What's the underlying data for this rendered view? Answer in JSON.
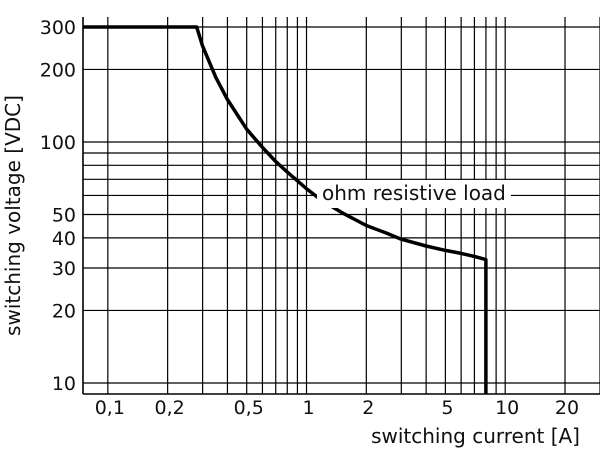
{
  "chart_data": {
    "type": "line",
    "xlabel": "switching current [A]",
    "ylabel": "switching voltage [VDC]",
    "x_scale": "log",
    "y_scale": "log",
    "xlim": [
      0.075,
      30
    ],
    "ylim": [
      9,
      330
    ],
    "grid": true,
    "x_ticks": [
      {
        "value": 0.1,
        "label": "0,1"
      },
      {
        "value": 0.2,
        "label": "0,2"
      },
      {
        "value": 0.5,
        "label": "0,5"
      },
      {
        "value": 1,
        "label": "1"
      },
      {
        "value": 2,
        "label": "2"
      },
      {
        "value": 5,
        "label": "5"
      },
      {
        "value": 10,
        "label": "10"
      },
      {
        "value": 20,
        "label": "20"
      }
    ],
    "x_grid": [
      0.1,
      0.2,
      0.3,
      0.4,
      0.5,
      0.6,
      0.7,
      0.8,
      0.9,
      1,
      2,
      3,
      4,
      5,
      6,
      7,
      8,
      9,
      10,
      20,
      30
    ],
    "y_ticks": [
      {
        "value": 10,
        "label": "10"
      },
      {
        "value": 20,
        "label": "20"
      },
      {
        "value": 30,
        "label": "30"
      },
      {
        "value": 40,
        "label": "40"
      },
      {
        "value": 50,
        "label": "50"
      },
      {
        "value": 100,
        "label": "100"
      },
      {
        "value": 200,
        "label": "200"
      },
      {
        "value": 300,
        "label": "300"
      }
    ],
    "y_grid": [
      10,
      20,
      30,
      40,
      50,
      60,
      70,
      80,
      90,
      100,
      200,
      300
    ],
    "series": [
      {
        "name": "ohm resistive load",
        "color": "#000000",
        "points": [
          [
            0.075,
            300
          ],
          [
            0.28,
            300
          ],
          [
            0.3,
            250
          ],
          [
            0.35,
            185
          ],
          [
            0.4,
            150
          ],
          [
            0.5,
            113
          ],
          [
            0.6,
            95
          ],
          [
            0.7,
            83
          ],
          [
            0.8,
            75
          ],
          [
            1,
            64
          ],
          [
            1.2,
            57
          ],
          [
            1.5,
            51
          ],
          [
            2,
            45
          ],
          [
            2.5,
            42
          ],
          [
            3,
            39.5
          ],
          [
            4,
            37
          ],
          [
            5,
            35.5
          ],
          [
            6,
            34.5
          ],
          [
            7,
            33.5
          ],
          [
            8,
            32.5
          ],
          [
            8,
            9
          ]
        ]
      }
    ],
    "annotations": [
      {
        "text": "ohm resistive load"
      }
    ]
  }
}
